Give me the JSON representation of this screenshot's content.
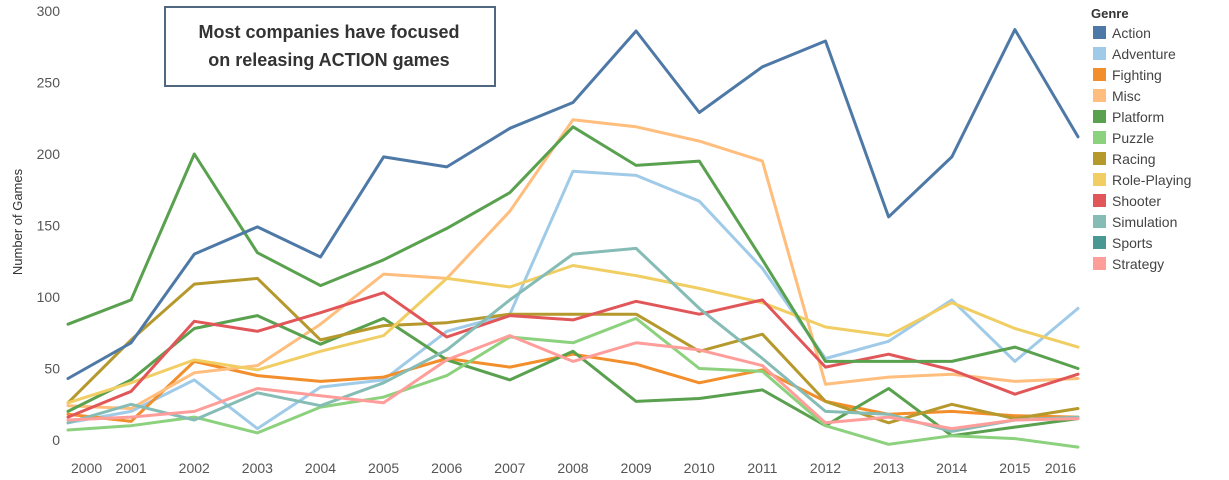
{
  "chart_data": {
    "type": "line",
    "title": "",
    "xlabel": "",
    "ylabel": "Number of Games",
    "ylim": [
      -5,
      300
    ],
    "yticks": [
      0,
      50,
      100,
      150,
      200,
      250,
      300
    ],
    "x": [
      2000,
      2001,
      2002,
      2003,
      2004,
      2005,
      2006,
      2007,
      2008,
      2009,
      2010,
      2011,
      2012,
      2013,
      2014,
      2015,
      2016
    ],
    "grid": false,
    "legend": {
      "title": "Genre",
      "placement": "right"
    },
    "annotation": {
      "lines": [
        "Most companies have focused",
        "on releasing ACTION games"
      ]
    },
    "series": [
      {
        "name": "Action",
        "color": "#4e79a7",
        "values": [
          43,
          68,
          130,
          149,
          128,
          198,
          191,
          218,
          236,
          286,
          229,
          261,
          279,
          156,
          198,
          287,
          212
        ]
      },
      {
        "name": "Adventure",
        "color": "#a0cbe8",
        "values": [
          12,
          20,
          42,
          8,
          37,
          42,
          76,
          88,
          188,
          185,
          167,
          120,
          57,
          69,
          98,
          55,
          92
        ]
      },
      {
        "name": "Fighting",
        "color": "#f28e2b",
        "values": [
          18,
          13,
          55,
          45,
          41,
          44,
          57,
          51,
          60,
          53,
          40,
          49,
          27,
          18,
          20,
          17,
          16
        ]
      },
      {
        "name": "Misc",
        "color": "#ffbe7d",
        "values": [
          24,
          22,
          47,
          52,
          81,
          116,
          113,
          160,
          224,
          219,
          209,
          195,
          39,
          44,
          46,
          41,
          43
        ]
      },
      {
        "name": "Platform",
        "color": "#59a14f",
        "values": [
          20,
          42,
          78,
          87,
          67,
          85,
          56,
          42,
          62,
          27,
          29,
          35,
          10,
          36,
          3,
          9,
          15
        ]
      },
      {
        "name": "Puzzle",
        "color": "#8cd17d",
        "values": [
          7,
          10,
          16,
          5,
          23,
          30,
          45,
          72,
          68,
          85,
          50,
          48,
          10,
          -3,
          3,
          1,
          -5
        ]
      },
      {
        "name": "Racing",
        "color": "#b6992d",
        "values": [
          26,
          70,
          109,
          113,
          70,
          80,
          82,
          88,
          88,
          88,
          62,
          74,
          27,
          12,
          25,
          15,
          22
        ]
      },
      {
        "name": "Role-Playing",
        "color": "#f1ce63",
        "values": [
          26,
          40,
          56,
          49,
          62,
          73,
          113,
          107,
          122,
          115,
          106,
          96,
          79,
          73,
          96,
          78,
          65
        ]
      },
      {
        "name": "Shooter",
        "color": "#e15759",
        "values": [
          16,
          34,
          83,
          76,
          89,
          103,
          72,
          87,
          84,
          97,
          88,
          98,
          51,
          60,
          49,
          32,
          46
        ]
      },
      {
        "name": "Simulation",
        "color": "#86bcb6",
        "values": [
          12,
          25,
          14,
          33,
          24,
          40,
          63,
          98,
          130,
          134,
          92,
          57,
          20,
          18,
          6,
          14,
          16
        ]
      },
      {
        "name": "Sports",
        "color": "#499894",
        "values": [
          81,
          98,
          200,
          131,
          108,
          126,
          148,
          173,
          219,
          192,
          195,
          126,
          55,
          55,
          55,
          65,
          50
        ],
        "drawColor": "#59a14f"
      },
      {
        "name": "Strategy",
        "color": "#ff9d9a",
        "values": [
          14,
          16,
          20,
          36,
          31,
          26,
          56,
          73,
          55,
          68,
          63,
          52,
          12,
          16,
          8,
          14,
          15
        ]
      }
    ]
  }
}
